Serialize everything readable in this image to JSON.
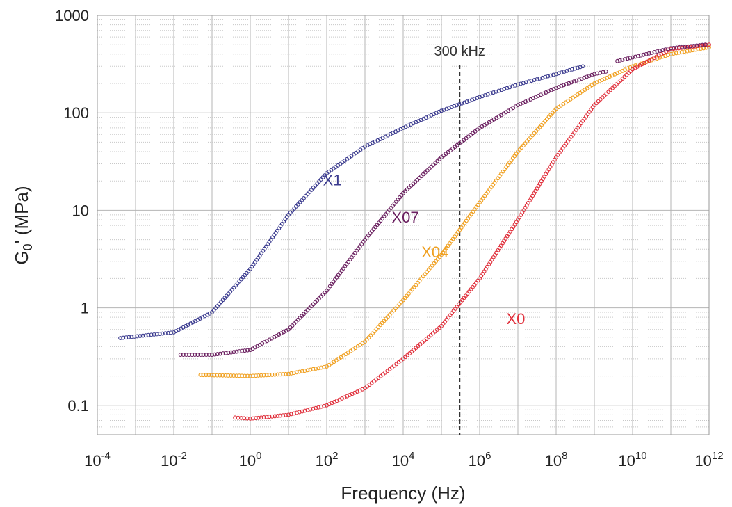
{
  "chart_data": {
    "type": "scatter",
    "xlabel": "Frequency (Hz)",
    "ylabel": "G0' (MPa)",
    "ylabel_main": "G",
    "ylabel_sub": "0",
    "ylabel_rest": "' (MPa)",
    "x_scale": "log",
    "y_scale": "log",
    "xlim": [
      0.0001,
      1000000000000
    ],
    "ylim": [
      0.05,
      1000
    ],
    "x_ticks": [
      {
        "base": "10",
        "exp": "-4"
      },
      {
        "base": "10",
        "exp": "-2"
      },
      {
        "base": "10",
        "exp": "0"
      },
      {
        "base": "10",
        "exp": "2"
      },
      {
        "base": "10",
        "exp": "4"
      },
      {
        "base": "10",
        "exp": "6"
      },
      {
        "base": "10",
        "exp": "8"
      },
      {
        "base": "10",
        "exp": "10"
      },
      {
        "base": "10",
        "exp": "12"
      }
    ],
    "y_ticks": [
      "0.1",
      "1",
      "10",
      "100",
      "1000"
    ],
    "grid": true,
    "annotation": {
      "text": "300 kHz",
      "x": 300000
    },
    "series": [
      {
        "name": "X1",
        "color": "#3b3b8f",
        "points": [
          [
            0.0004,
            0.49
          ],
          [
            0.01,
            0.56
          ],
          [
            0.1,
            0.9
          ],
          [
            1,
            2.5
          ],
          [
            10,
            9
          ],
          [
            100,
            24
          ],
          [
            1000,
            45
          ],
          [
            10000,
            70
          ],
          [
            100000,
            105
          ],
          [
            1000000,
            145
          ],
          [
            10000000,
            195
          ],
          [
            100000000,
            250
          ],
          [
            500000000,
            300
          ]
        ]
      },
      {
        "name": "X07",
        "color": "#6b2060",
        "points": [
          [
            0.015,
            0.33
          ],
          [
            0.1,
            0.33
          ],
          [
            1,
            0.37
          ],
          [
            10,
            0.6
          ],
          [
            100,
            1.5
          ],
          [
            1000,
            5
          ],
          [
            10000,
            15
          ],
          [
            100000,
            35
          ],
          [
            1000000,
            70
          ],
          [
            10000000,
            120
          ],
          [
            100000000,
            180
          ],
          [
            1000000000,
            250
          ],
          [
            2000000000,
            265
          ]
        ]
      },
      {
        "name": "X04",
        "color": "#f0a020",
        "points": [
          [
            0.05,
            0.205
          ],
          [
            1,
            0.2
          ],
          [
            10,
            0.21
          ],
          [
            100,
            0.25
          ],
          [
            1000,
            0.45
          ],
          [
            10000,
            1.2
          ],
          [
            100000,
            3.5
          ],
          [
            1000000,
            12
          ],
          [
            10000000,
            40
          ],
          [
            100000000,
            110
          ],
          [
            1000000000,
            200
          ],
          [
            10000000000,
            300
          ],
          [
            100000000000,
            400
          ],
          [
            1000000000000,
            470
          ]
        ]
      },
      {
        "name": "X0",
        "color": "#e0303c",
        "points": [
          [
            0.4,
            0.075
          ],
          [
            1,
            0.073
          ],
          [
            10,
            0.08
          ],
          [
            100,
            0.1
          ],
          [
            1000,
            0.15
          ],
          [
            10000,
            0.3
          ],
          [
            100000,
            0.65
          ],
          [
            1000000,
            2
          ],
          [
            10000000,
            8
          ],
          [
            100000000,
            35
          ],
          [
            1000000000,
            120
          ],
          [
            10000000000,
            280
          ],
          [
            100000000000,
            450
          ],
          [
            1000000000000,
            500
          ]
        ]
      },
      {
        "name": "",
        "color": "#6b2060",
        "points": [
          [
            4000000000,
            340
          ],
          [
            10000000000,
            370
          ],
          [
            100000000000,
            460
          ],
          [
            800000000000,
            500
          ]
        ]
      }
    ],
    "labels": [
      {
        "text": "X1",
        "x": 80,
        "y": 18
      },
      {
        "text": "X07",
        "x": 5000,
        "y": 7.5
      },
      {
        "text": "X04",
        "x": 30000,
        "y": 3.3
      },
      {
        "text": "X0",
        "x": 5000000,
        "y": 0.68
      }
    ]
  }
}
